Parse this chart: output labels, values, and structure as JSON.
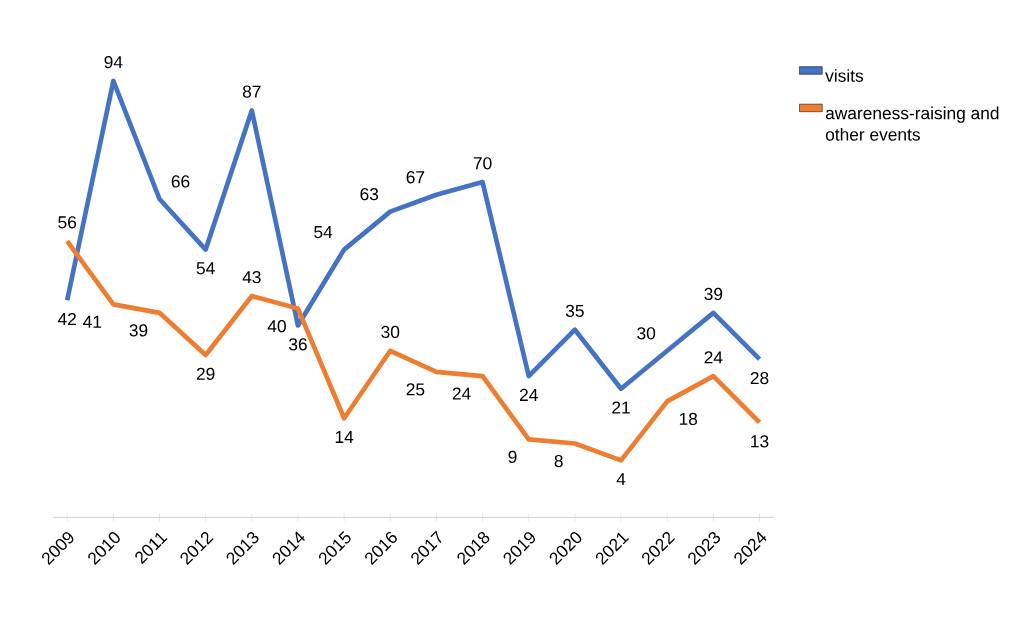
{
  "chart_data": {
    "type": "line",
    "categories": [
      "2009",
      "2010",
      "2011",
      "2012",
      "2013",
      "2014",
      "2015",
      "2016",
      "2017",
      "2018",
      "2019",
      "2020",
      "2021",
      "2022",
      "2023",
      "2024"
    ],
    "series": [
      {
        "name": "visits",
        "color": "#4472c4",
        "values": [
          42,
          94,
          66,
          54,
          87,
          36,
          54,
          63,
          67,
          70,
          24,
          35,
          21,
          30,
          39,
          28
        ]
      },
      {
        "name": "awareness-raising and other events",
        "color": "#ed7d31",
        "values": [
          56,
          41,
          39,
          29,
          43,
          40,
          14,
          30,
          25,
          24,
          9,
          8,
          4,
          18,
          24,
          13
        ]
      }
    ],
    "data_labels": true,
    "legend": "right",
    "marker": "none",
    "line_style": "solid"
  }
}
